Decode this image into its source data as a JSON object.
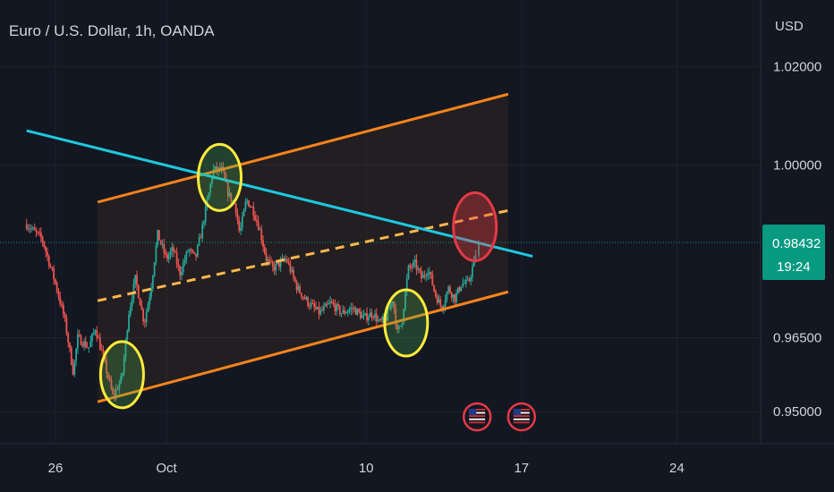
{
  "header": {
    "title": "Euro / U.S. Dollar, 1h, OANDA",
    "currency": "USD"
  },
  "price_label": {
    "value": "0.98432",
    "countdown": "19:24",
    "color": "#089981"
  },
  "colors": {
    "background": "#131722",
    "up": "#26a69a",
    "down": "#ef5350",
    "channel": "#f7841c",
    "midline": "#ffb74d",
    "trendline": "#1ec8e0",
    "highlight_circle": "#ffeb3b",
    "target_circle": "#e53945",
    "price_line": "#089981"
  },
  "icons": [
    "us-flag-event-icon",
    "us-flag-event-icon"
  ],
  "chart_data": {
    "type": "candlestick",
    "title": "Euro / U.S. Dollar, 1h, OANDA",
    "ylabel": "USD",
    "ylim": [
      0.9435,
      1.0335
    ],
    "y_ticks": [
      "1.02000",
      "1.00000",
      "0.98432",
      "0.96500",
      "0.95000"
    ],
    "y_tick_values": [
      1.02,
      1.0,
      0.965,
      0.95
    ],
    "x_ticks": [
      "26",
      "Oct",
      "10",
      "17",
      "24"
    ],
    "x_tick_days": [
      0,
      5,
      14,
      21,
      28
    ],
    "last_price": 0.98432,
    "price_path": [
      [
        -1.3,
        0.988
      ],
      [
        -0.6,
        0.985
      ],
      [
        0.0,
        0.976
      ],
      [
        0.4,
        0.969
      ],
      [
        0.8,
        0.958
      ],
      [
        1.0,
        0.965
      ],
      [
        1.5,
        0.963
      ],
      [
        1.8,
        0.967
      ],
      [
        2.2,
        0.96
      ],
      [
        2.6,
        0.953
      ],
      [
        3.0,
        0.957
      ],
      [
        3.3,
        0.97
      ],
      [
        3.6,
        0.977
      ],
      [
        4.0,
        0.968
      ],
      [
        4.3,
        0.975
      ],
      [
        4.6,
        0.986
      ],
      [
        5.0,
        0.981
      ],
      [
        5.3,
        0.983
      ],
      [
        5.6,
        0.978
      ],
      [
        6.0,
        0.983
      ],
      [
        6.3,
        0.981
      ],
      [
        6.6,
        0.987
      ],
      [
        6.9,
        0.994
      ],
      [
        7.1,
        0.999
      ],
      [
        7.5,
        0.999
      ],
      [
        7.8,
        0.994
      ],
      [
        8.1,
        0.992
      ],
      [
        8.3,
        0.986
      ],
      [
        8.6,
        0.993
      ],
      [
        8.9,
        0.991
      ],
      [
        9.2,
        0.987
      ],
      [
        9.5,
        0.981
      ],
      [
        9.8,
        0.979
      ],
      [
        10.4,
        0.981
      ],
      [
        10.9,
        0.975
      ],
      [
        11.4,
        0.972
      ],
      [
        11.9,
        0.97
      ],
      [
        12.4,
        0.972
      ],
      [
        12.9,
        0.97
      ],
      [
        13.4,
        0.971
      ],
      [
        13.9,
        0.969
      ],
      [
        14.3,
        0.97
      ],
      [
        14.6,
        0.968
      ],
      [
        14.9,
        0.969
      ],
      [
        15.2,
        0.973
      ],
      [
        15.4,
        0.966
      ],
      [
        15.6,
        0.968
      ],
      [
        15.9,
        0.979
      ],
      [
        16.2,
        0.98
      ],
      [
        16.5,
        0.977
      ],
      [
        16.8,
        0.979
      ],
      [
        17.1,
        0.974
      ],
      [
        17.4,
        0.971
      ],
      [
        17.7,
        0.975
      ],
      [
        18.0,
        0.973
      ],
      [
        18.3,
        0.976
      ],
      [
        18.6,
        0.976
      ],
      [
        18.9,
        0.981
      ],
      [
        19.0,
        0.984
      ]
    ],
    "channel": {
      "upper": [
        [
          1.9,
          0.9925
        ],
        [
          20.4,
          1.0144
        ]
      ],
      "lower": [
        [
          1.9,
          0.952
        ],
        [
          20.4,
          0.9743
        ]
      ],
      "mid": [
        [
          1.9,
          0.9725
        ],
        [
          20.4,
          0.9908
        ]
      ]
    },
    "trendline": [
      [
        -1.3,
        1.007
      ],
      [
        21.5,
        0.9815
      ]
    ],
    "highlights": [
      {
        "day": 3.0,
        "price": 0.9575,
        "kind": "touch"
      },
      {
        "day": 7.4,
        "price": 0.9975,
        "kind": "touch"
      },
      {
        "day": 15.8,
        "price": 0.968,
        "kind": "touch"
      },
      {
        "day": 18.9,
        "price": 0.9875,
        "kind": "target"
      }
    ],
    "events": [
      {
        "day": 19.0,
        "icon": "us-flag-event-icon"
      },
      {
        "day": 21.0,
        "icon": "us-flag-event-icon"
      }
    ],
    "grid": true,
    "legend": "none"
  }
}
